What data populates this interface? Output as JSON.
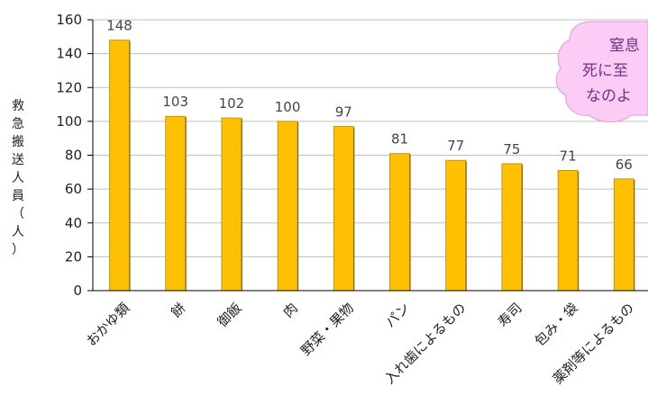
{
  "colors": {
    "bar": "#FFC000",
    "bar_stroke": "#B88A00",
    "grid": "#BFBFBF",
    "callout_fill": "#FCCBF6",
    "callout_text": "#7A3080"
  },
  "callout": {
    "lines": [
      "窒息",
      "死に至",
      "なのよ"
    ]
  },
  "chart_data": {
    "type": "bar",
    "categories": [
      "おかゆ類",
      "餅",
      "御飯",
      "肉",
      "野菜・果物",
      "パン",
      "入れ歯によるもの",
      "寿司",
      "包み・袋",
      "薬剤等によるもの"
    ],
    "values": [
      148,
      103,
      102,
      100,
      97,
      81,
      77,
      75,
      71,
      66
    ],
    "value_labels": [
      "148",
      "103",
      "102",
      "100",
      "97",
      "81",
      "77",
      "75",
      "71",
      "66"
    ],
    "ylabel": "救急搬送人員（人）",
    "ylabel_chars": [
      "救",
      "急",
      "搬",
      "送",
      "人",
      "員",
      "（",
      "人",
      "）"
    ],
    "ylim": [
      0,
      160
    ],
    "yticks": [
      0,
      20,
      40,
      60,
      80,
      100,
      120,
      140,
      160
    ],
    "ytick_labels": [
      "0",
      "20",
      "40",
      "60",
      "80",
      "100",
      "120",
      "140",
      "160"
    ],
    "grid": true,
    "legend": "none"
  }
}
